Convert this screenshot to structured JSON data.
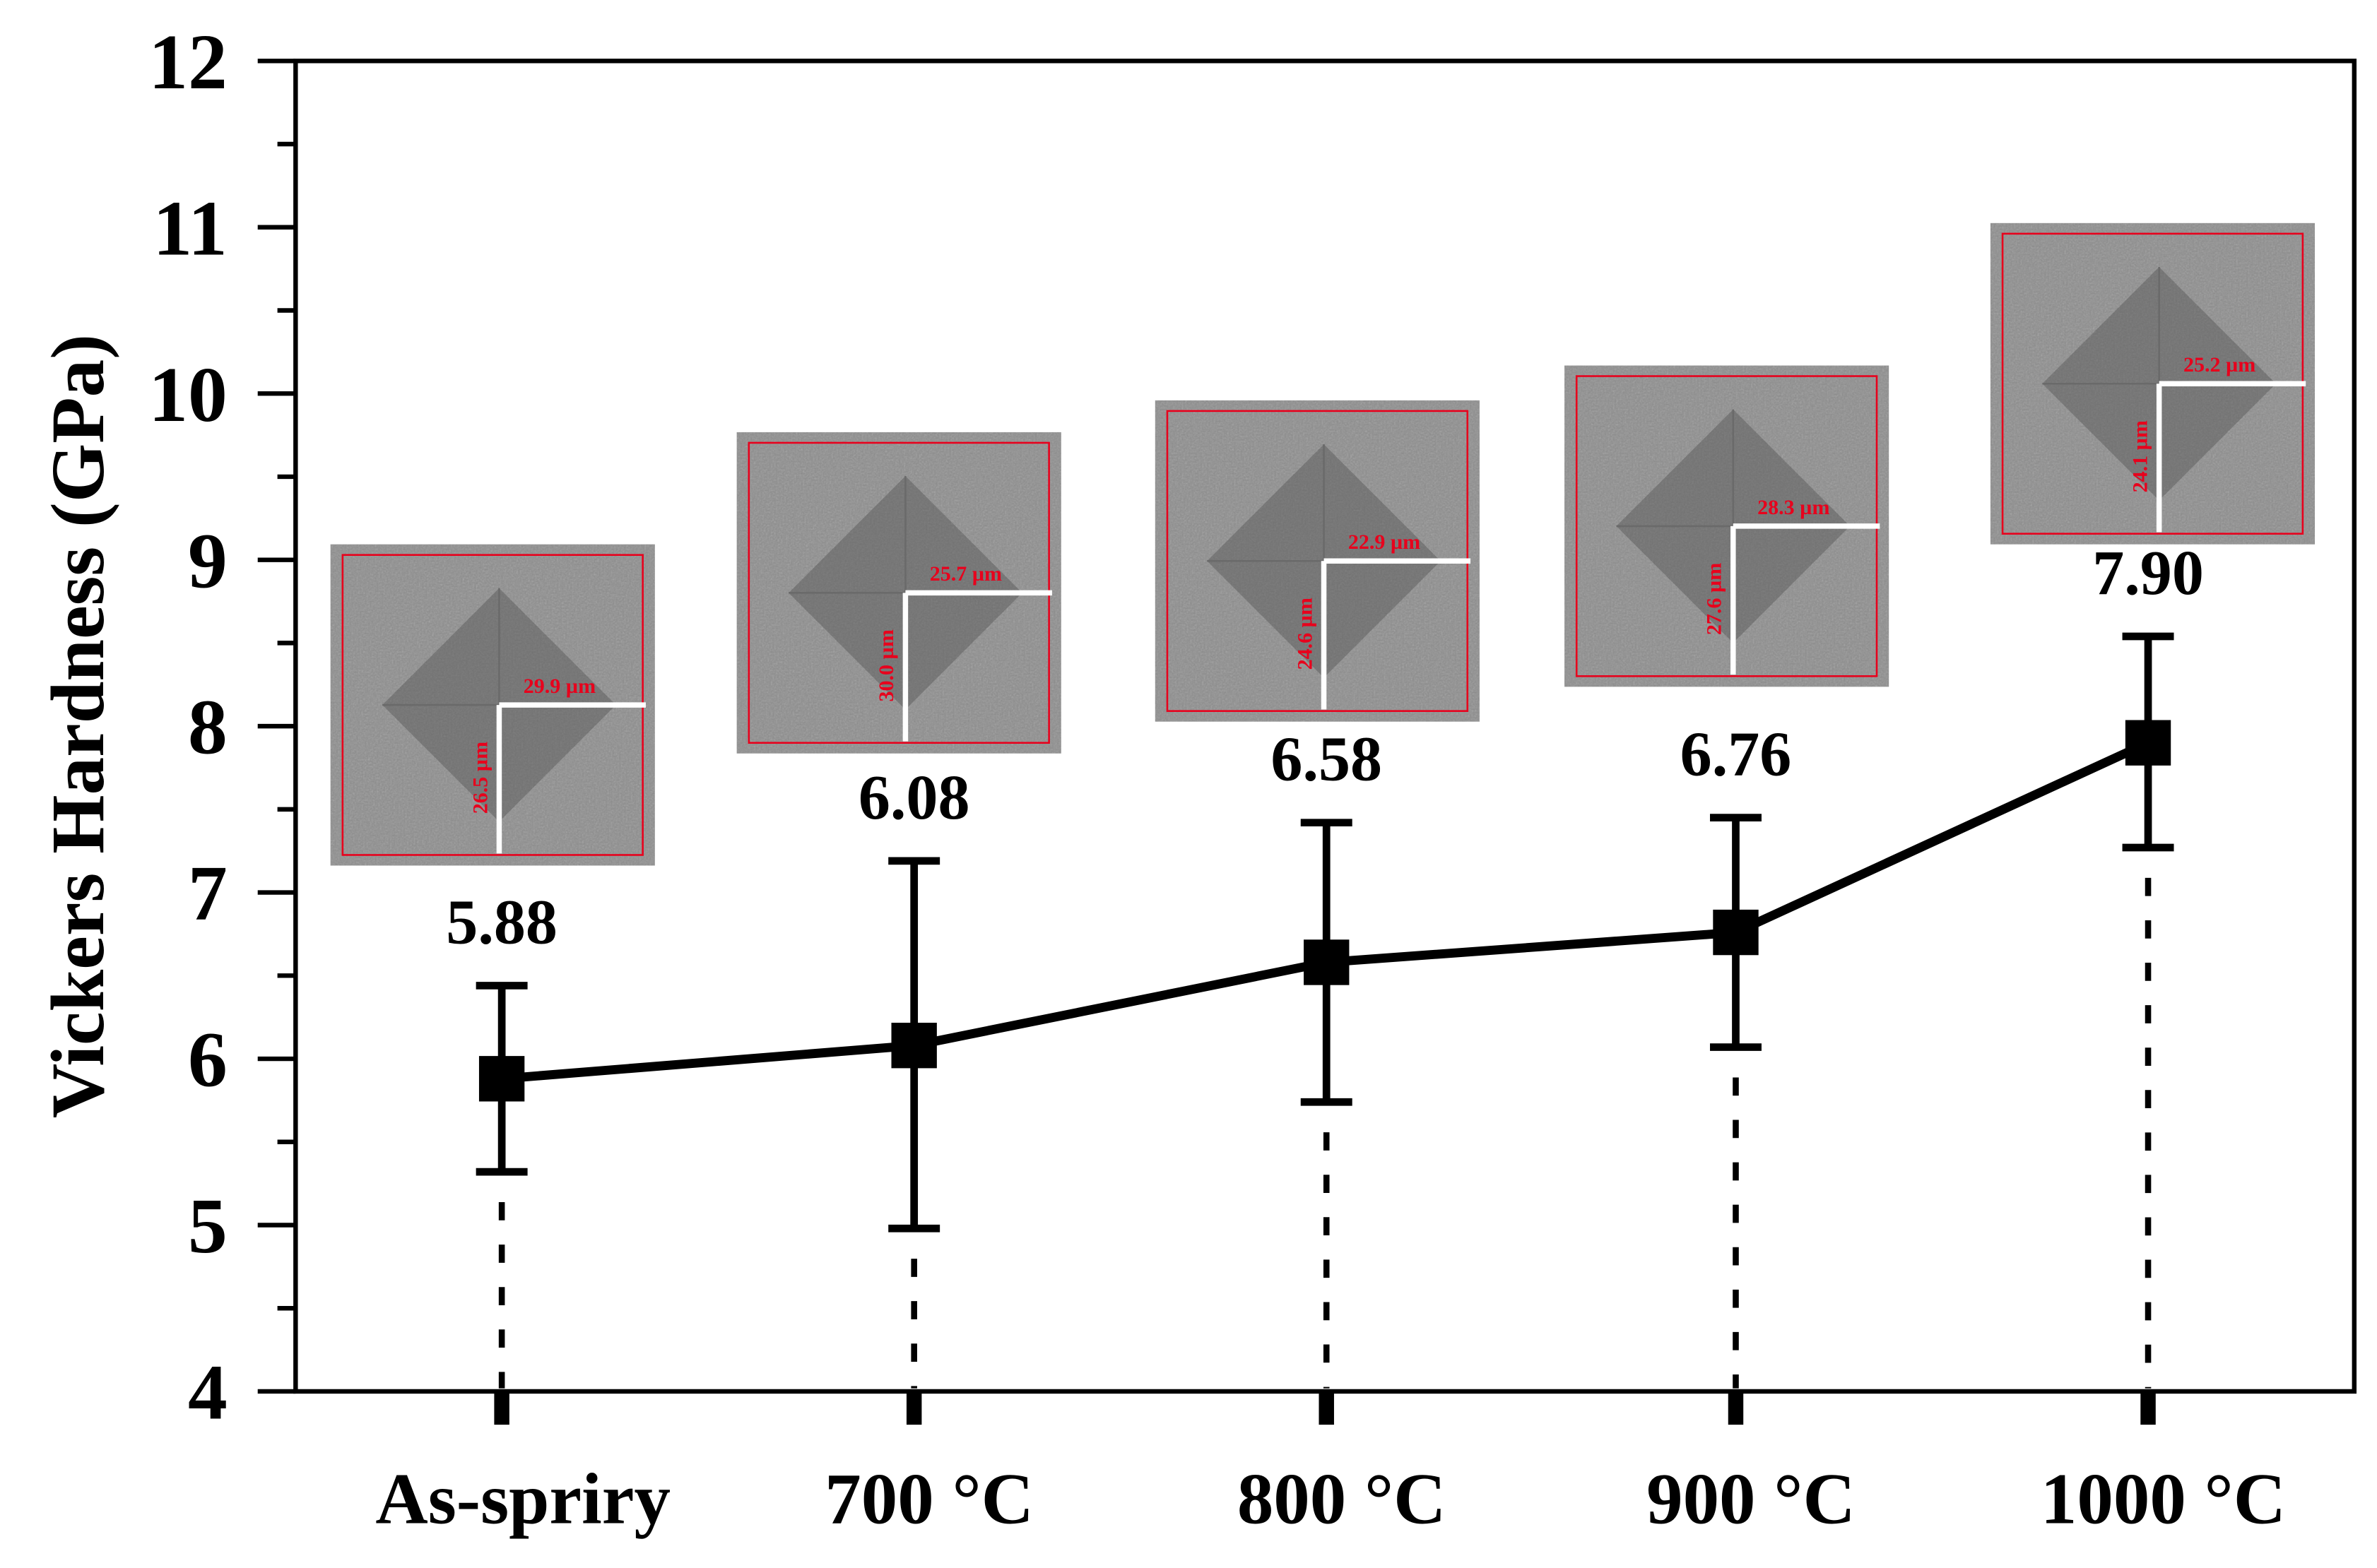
{
  "chart_data": {
    "type": "line",
    "ylabel": "Vickers Hardness (GPa)",
    "xlabel": "",
    "ylim": [
      4,
      12
    ],
    "yticks": [
      4,
      5,
      6,
      7,
      8,
      9,
      10,
      11,
      12
    ],
    "categories": [
      "As-spriry",
      "700 °C",
      "800 °C",
      "900 °C",
      "1000 °C"
    ],
    "series": [
      {
        "name": "Vickers Hardness",
        "values": [
          5.88,
          6.08,
          6.58,
          6.76,
          7.9
        ],
        "value_labels": [
          "5.88",
          "6.08",
          "6.58",
          "6.76",
          "7.90"
        ],
        "error_low": [
          5.32,
          4.98,
          5.74,
          6.07,
          7.27
        ],
        "error_high": [
          6.44,
          7.19,
          7.42,
          7.45,
          8.54
        ],
        "marker": "square",
        "color": "#000000"
      }
    ],
    "insets": [
      {
        "category": "As-spriry",
        "diagonal_horizontal": "29.9 µm",
        "diagonal_vertical": "26.5 µm"
      },
      {
        "category": "700 °C",
        "diagonal_horizontal": "25.7 µm",
        "diagonal_vertical": "30.0 µm"
      },
      {
        "category": "800 °C",
        "diagonal_horizontal": "22.9 µm",
        "diagonal_vertical": "24.6 µm"
      },
      {
        "category": "900 °C",
        "diagonal_horizontal": "28.3 µm",
        "diagonal_vertical": "27.6 µm"
      },
      {
        "category": "1000 °C",
        "diagonal_horizontal": "25.2 µm",
        "diagonal_vertical": "24.1 µm"
      }
    ],
    "colors": {
      "line": "#000000",
      "annotation": "#e8001c",
      "measure_line": "#ffffff",
      "inset_bg": "#8d8d8d"
    }
  }
}
